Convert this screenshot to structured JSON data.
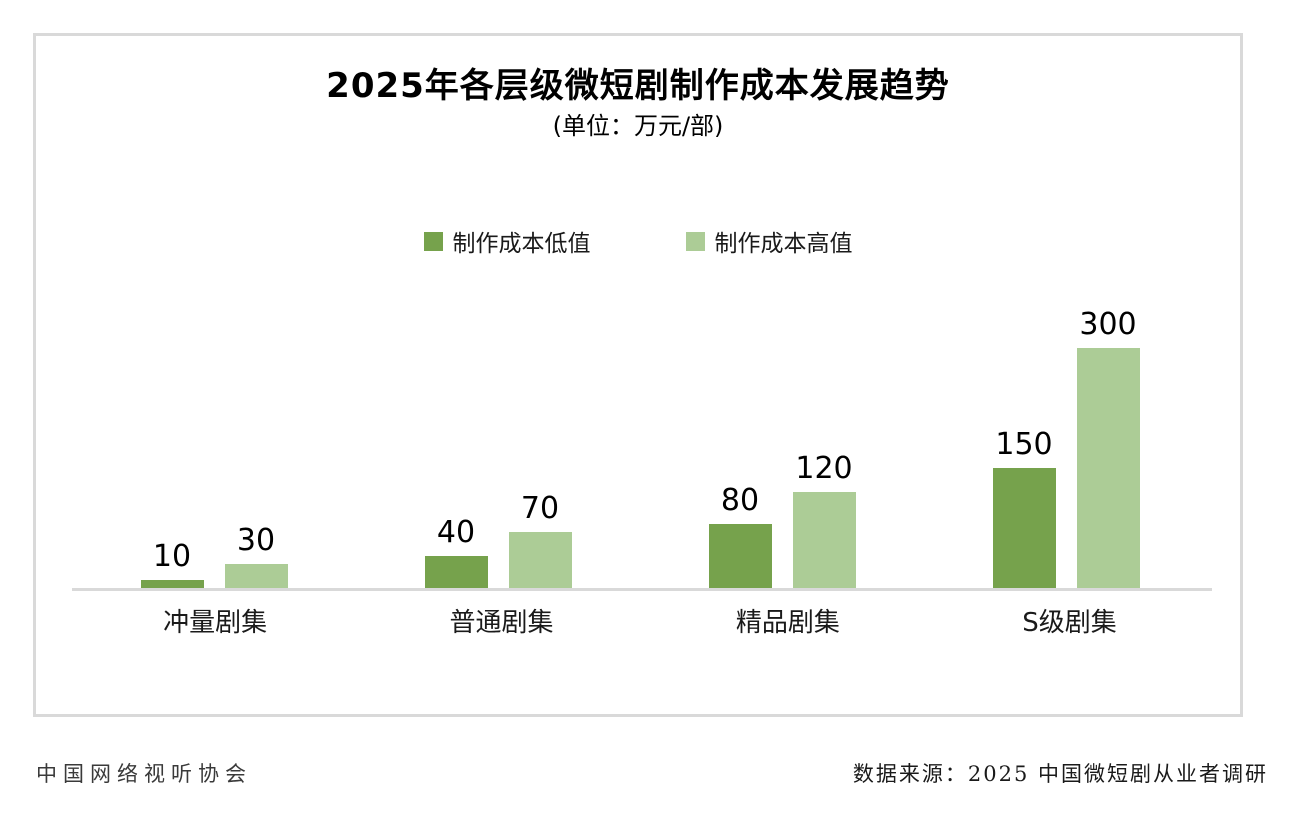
{
  "chart_data": {
    "type": "bar",
    "title": "2025年各层级微短剧制作成本发展趋势",
    "subtitle": "(单位：万元/部)",
    "categories": [
      "冲量剧集",
      "普通剧集",
      "精品剧集",
      "S级剧集"
    ],
    "series": [
      {
        "name": "制作成本低值",
        "color": "#76A24C",
        "values": [
          10,
          40,
          80,
          150
        ]
      },
      {
        "name": "制作成本高值",
        "color": "#ACCC96",
        "values": [
          30,
          70,
          120,
          300
        ]
      }
    ],
    "ylim": [
      0,
      300
    ],
    "grid": false,
    "legend_position": "top-center",
    "value_labels": true,
    "axis_color": "#d9d9d9"
  },
  "footer": {
    "left": "中国网络视听协会",
    "right": "数据来源：2025 中国微短剧从业者调研"
  }
}
